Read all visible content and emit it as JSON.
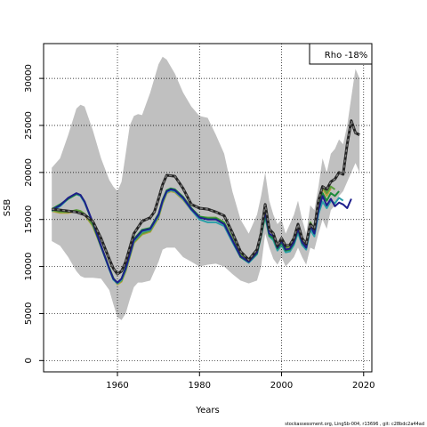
{
  "chart_data": {
    "type": "line",
    "xlabel": "Years",
    "ylabel": "SSB",
    "xlim": [
      1942,
      2022
    ],
    "ylim": [
      -1200,
      33700
    ],
    "x_ticks": [
      1960,
      1980,
      2000,
      2020
    ],
    "y_ticks": [
      0,
      5000,
      10000,
      15000,
      20000,
      25000,
      30000
    ],
    "grid": true,
    "grid_style": "dotted",
    "legend": {
      "text": "Rho -18%",
      "placement": "top-right"
    },
    "footer": "stockassessment.org, LingSb-004, r13696 ,  git: c28bdc2a44ad",
    "colors": {
      "band": "#c0c0c0",
      "base": "#222222",
      "base_dash": "#7a7a7a",
      "peel_1": "#1e1e8c",
      "peel_2": "#2a9fa8",
      "peel_3": "#1a8a3a",
      "peel_4": "#5a9e3a",
      "peel_5": "#b8a040",
      "peel_6": "#c0b050"
    },
    "band": {
      "x": [
        1944,
        1946,
        1948,
        1950,
        1951,
        1952,
        1954,
        1956,
        1958,
        1959,
        1960,
        1961,
        1962,
        1963,
        1964,
        1965,
        1966,
        1968,
        1970,
        1971,
        1972,
        1974,
        1976,
        1978,
        1980,
        1982,
        1984,
        1986,
        1988,
        1990,
        1992,
        1994,
        1995,
        1996,
        1997,
        1998,
        1999,
        2000,
        2001,
        2002,
        2003,
        2004,
        2005,
        2006,
        2007,
        2008,
        2009,
        2010,
        2011,
        2012,
        2013,
        2014,
        2015,
        2016,
        2017,
        2018,
        2019
      ],
      "upper": [
        20500,
        21500,
        24000,
        26800,
        27200,
        27000,
        24500,
        21500,
        19200,
        18500,
        18000,
        19000,
        22000,
        25000,
        26000,
        26200,
        26100,
        28500,
        31500,
        32300,
        32000,
        30500,
        28500,
        27000,
        26000,
        25800,
        24000,
        22000,
        18000,
        15000,
        13500,
        15500,
        17500,
        20000,
        17000,
        15500,
        14500,
        15000,
        13500,
        14500,
        15500,
        17000,
        15000,
        13500,
        16500,
        16000,
        18500,
        21500,
        20000,
        22000,
        22500,
        23500,
        23000,
        25000,
        28000,
        31000,
        30000
      ],
      "lower": [
        12700,
        12200,
        11000,
        9500,
        9000,
        8800,
        8800,
        8700,
        7500,
        6000,
        4600,
        4300,
        5000,
        6500,
        7800,
        8300,
        8300,
        8500,
        10500,
        11800,
        12000,
        12000,
        11000,
        10500,
        10000,
        10200,
        10300,
        10000,
        9200,
        8500,
        8200,
        8500,
        10000,
        13500,
        12000,
        10800,
        10200,
        11000,
        10000,
        10500,
        11000,
        12000,
        11000,
        10200,
        12000,
        11800,
        13500,
        15000,
        14000,
        16000,
        16500,
        17500,
        18000,
        19000,
        20000,
        21000,
        20000
      ]
    },
    "series": [
      {
        "key": "base",
        "x": [
          1944,
          1946,
          1948,
          1950,
          1952,
          1954,
          1956,
          1958,
          1959,
          1960,
          1961,
          1962,
          1964,
          1966,
          1968,
          1969,
          1970,
          1971,
          1972,
          1974,
          1976,
          1978,
          1980,
          1982,
          1984,
          1986,
          1988,
          1990,
          1992,
          1994,
          1995,
          1996,
          1997,
          1998,
          1999,
          2000,
          2001,
          2002,
          2003,
          2004,
          2005,
          2006,
          2007,
          2008,
          2009,
          2010,
          2011,
          2012,
          2013,
          2014,
          2015,
          2016,
          2017,
          2018,
          2019
        ],
        "y": [
          16100,
          16000,
          15900,
          15800,
          15500,
          14800,
          13000,
          10800,
          9800,
          9200,
          9500,
          10500,
          13500,
          14800,
          15200,
          15800,
          17200,
          18700,
          19700,
          19600,
          18300,
          16600,
          16200,
          16100,
          15800,
          15400,
          13600,
          11600,
          10700,
          11800,
          13500,
          16600,
          14000,
          13500,
          12200,
          13000,
          12200,
          12300,
          13000,
          14500,
          13000,
          12400,
          14500,
          14000,
          17000,
          18500,
          18200,
          19000,
          19300,
          20000,
          19800,
          23000,
          25500,
          24200,
          24000
        ]
      },
      {
        "key": "peel_1",
        "x": [
          1944,
          1946,
          1948,
          1950,
          1951,
          1952,
          1954,
          1956,
          1958,
          1959,
          1960,
          1961,
          1962,
          1964,
          1966,
          1968,
          1970,
          1971,
          1972,
          1973,
          1974,
          1976,
          1978,
          1980,
          1982,
          1984,
          1986,
          1988,
          1990,
          1992,
          1994,
          1995,
          1996,
          1997,
          1998,
          1999,
          2000,
          2001,
          2002,
          2003,
          2004,
          2005,
          2006,
          2007,
          2008,
          2009,
          2010,
          2011,
          2012,
          2013,
          2014,
          2015,
          2016,
          2017
        ],
        "y": [
          16000,
          16500,
          17300,
          17800,
          17600,
          16900,
          14700,
          12200,
          9800,
          8700,
          8300,
          8700,
          9800,
          12800,
          13800,
          14000,
          15500,
          17000,
          18000,
          18200,
          18100,
          17300,
          16100,
          15200,
          15000,
          15000,
          14500,
          12800,
          11100,
          10500,
          11500,
          13500,
          15800,
          13500,
          13200,
          12000,
          12700,
          11800,
          11900,
          12600,
          14000,
          12600,
          12000,
          14300,
          13500,
          16000,
          17500,
          16500,
          17200,
          16400,
          16800,
          16600,
          16200,
          17200
        ]
      },
      {
        "key": "peel_2",
        "x": [
          1944,
          1946,
          1948,
          1950,
          1951,
          1952,
          1954,
          1956,
          1958,
          1959,
          1960,
          1961,
          1962,
          1964,
          1966,
          1968,
          1970,
          1971,
          1972,
          1973,
          1974,
          1976,
          1978,
          1980,
          1982,
          1984,
          1986,
          1988,
          1990,
          1992,
          1994,
          1995,
          1996,
          1997,
          1998,
          1999,
          2000,
          2001,
          2002,
          2003,
          2004,
          2005,
          2006,
          2007,
          2008,
          2009,
          2010,
          2011,
          2012,
          2013,
          2014,
          2015
        ],
        "y": [
          15900,
          16400,
          17200,
          17700,
          17500,
          16800,
          14600,
          12100,
          9700,
          8600,
          8200,
          8600,
          9700,
          12700,
          13700,
          13900,
          15400,
          16900,
          17900,
          18100,
          18000,
          17200,
          16000,
          15000,
          14700,
          14700,
          14300,
          12600,
          11000,
          10400,
          11300,
          13200,
          15300,
          13200,
          12800,
          11700,
          12300,
          11500,
          11600,
          12300,
          13600,
          12300,
          11800,
          13900,
          13200,
          15600,
          16900,
          16200,
          17000,
          16700,
          17300,
          17000
        ]
      },
      {
        "key": "peel_3",
        "x": [
          1944,
          1946,
          1948,
          1950,
          1951,
          1952,
          1954,
          1956,
          1958,
          1959,
          1960,
          1961,
          1962,
          1964,
          1966,
          1968,
          1970,
          1971,
          1972,
          1973,
          1974,
          1976,
          1978,
          1980,
          1982,
          1984,
          1986,
          1988,
          1990,
          1992,
          1994,
          1995,
          1996,
          1997,
          1998,
          1999,
          2000,
          2001,
          2002,
          2003,
          2004,
          2005,
          2006,
          2007,
          2008,
          2009,
          2010,
          2011,
          2012,
          2013,
          2014
        ],
        "y": [
          16100,
          16600,
          17200,
          17700,
          17600,
          16900,
          14600,
          12100,
          9800,
          8700,
          8300,
          8700,
          9900,
          12900,
          13900,
          14100,
          15600,
          17100,
          18100,
          18300,
          18200,
          17400,
          16200,
          15300,
          15100,
          15100,
          14600,
          12800,
          11000,
          10500,
          11400,
          13300,
          15500,
          13300,
          13000,
          11900,
          12500,
          11700,
          11800,
          12500,
          13900,
          12500,
          12000,
          14300,
          13600,
          16200,
          17800,
          17000,
          17800,
          17500,
          18000
        ]
      },
      {
        "key": "peel_4",
        "x": [
          1944,
          1946,
          1948,
          1950,
          1951,
          1952,
          1954,
          1956,
          1958,
          1959,
          1960,
          1961,
          1962,
          1964,
          1966,
          1968,
          1970,
          1971,
          1972,
          1973,
          1974,
          1976,
          1978,
          1980,
          1982,
          1984,
          1986,
          1988,
          1990,
          1992,
          1994,
          1995,
          1996,
          1997,
          1998,
          1999,
          2000,
          2001,
          2002,
          2003,
          2004,
          2005,
          2006,
          2007,
          2008,
          2009,
          2010,
          2011,
          2012,
          2013
        ],
        "y": [
          16000,
          15800,
          15800,
          16000,
          15900,
          15600,
          14400,
          12200,
          9900,
          8800,
          8200,
          8500,
          9600,
          12600,
          13500,
          13800,
          15300,
          16800,
          17900,
          18100,
          18000,
          17200,
          16100,
          15300,
          15200,
          15200,
          14700,
          13000,
          11300,
          10700,
          11700,
          13700,
          16300,
          13900,
          13600,
          12300,
          13000,
          12000,
          12200,
          12900,
          14400,
          12900,
          12300,
          14700,
          14000,
          16900,
          18500,
          17800,
          18500,
          18200
        ]
      },
      {
        "key": "peel_5",
        "x": [
          1944,
          1946,
          1948,
          1950,
          1951,
          1952,
          1954,
          1956,
          1958,
          1959,
          1960,
          1961,
          1962,
          1964,
          1966,
          1968,
          1970,
          1971,
          1972,
          1973,
          1974,
          1976,
          1978,
          1980,
          1982,
          1984,
          1986,
          1988,
          1990,
          1992,
          1994,
          1995,
          1996,
          1997,
          1998,
          1999,
          2000,
          2001,
          2002,
          2003,
          2004,
          2005,
          2006,
          2007,
          2008,
          2009,
          2010,
          2011,
          2012
        ],
        "y": [
          15900,
          15700,
          15700,
          15900,
          15800,
          15500,
          14300,
          12100,
          9800,
          8700,
          8100,
          8400,
          9500,
          12500,
          13400,
          13700,
          15200,
          16700,
          17800,
          18000,
          17900,
          17100,
          16000,
          15200,
          15100,
          15100,
          14600,
          12900,
          11200,
          10600,
          11600,
          13600,
          16200,
          13800,
          13500,
          12200,
          12900,
          11900,
          12100,
          12800,
          14300,
          12800,
          12200,
          14600,
          13900,
          16700,
          18300,
          17500,
          18300
        ]
      },
      {
        "key": "peel_6",
        "x": [
          1944,
          1946,
          1948,
          1950,
          1951,
          1952,
          1954,
          1956,
          1958,
          1959,
          1960,
          1961,
          1962,
          1964,
          1966,
          1968,
          1970,
          1971,
          1972,
          1973,
          1974,
          1976,
          1978,
          1980,
          1982,
          1984,
          1986,
          1988,
          1990,
          1992,
          1994,
          1995,
          1996,
          1997,
          1998,
          1999,
          2000,
          2001,
          2002,
          2003,
          2004,
          2005,
          2006,
          2007,
          2008,
          2009,
          2010,
          2011
        ],
        "y": [
          15900,
          15700,
          15700,
          15900,
          15800,
          15500,
          14300,
          12100,
          9800,
          8700,
          8100,
          8400,
          9500,
          12500,
          13400,
          13700,
          15200,
          16700,
          17800,
          18000,
          17900,
          17100,
          16000,
          15200,
          15100,
          15100,
          14600,
          12900,
          11200,
          10600,
          11600,
          13600,
          16200,
          13800,
          13500,
          12200,
          12900,
          11900,
          12100,
          12800,
          14300,
          12800,
          12200,
          14600,
          13900,
          16600,
          18200,
          17800
        ]
      }
    ]
  }
}
